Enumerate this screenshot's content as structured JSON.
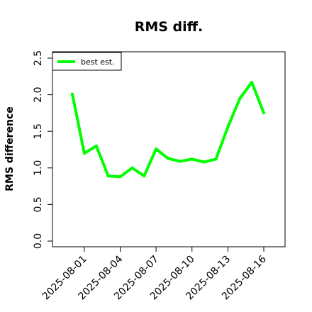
{
  "chart_data": {
    "type": "line",
    "title": "RMS diff.",
    "xlabel": "",
    "ylabel": "RMS difference",
    "ylim": [
      0,
      2.5
    ],
    "y_ticks": [
      "0.0",
      "0.5",
      "1.0",
      "1.5",
      "2.0",
      "2.5"
    ],
    "x_ticks": [
      "2025-08-01",
      "2025-08-04",
      "2025-08-07",
      "2025-08-10",
      "2025-08-13",
      "2025-08-16"
    ],
    "x": [
      "2025-07-31",
      "2025-08-01",
      "2025-08-02",
      "2025-08-03",
      "2025-08-04",
      "2025-08-05",
      "2025-08-06",
      "2025-08-07",
      "2025-08-08",
      "2025-08-09",
      "2025-08-10",
      "2025-08-11",
      "2025-08-12",
      "2025-08-13",
      "2025-08-14",
      "2025-08-15",
      "2025-08-16"
    ],
    "series": [
      {
        "name": "best est.",
        "color": "#00ff00",
        "values": [
          2.01,
          1.2,
          1.3,
          0.89,
          0.88,
          1.0,
          0.89,
          1.26,
          1.13,
          1.09,
          1.12,
          1.08,
          1.12,
          1.56,
          1.95,
          2.17,
          1.75
        ]
      }
    ],
    "legend_position": "top-left",
    "grid": false
  }
}
